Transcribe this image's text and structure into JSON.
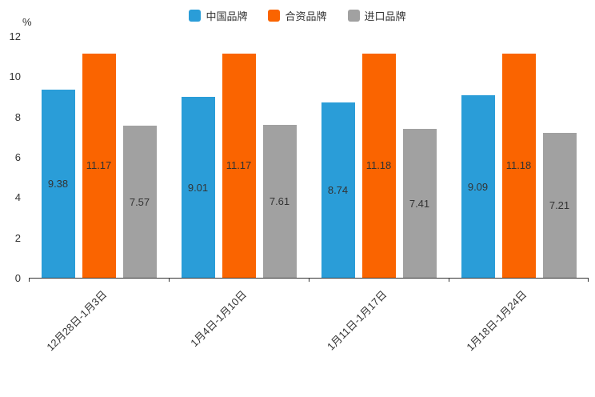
{
  "chart_data": {
    "type": "bar",
    "title": "",
    "ylabel": "%",
    "ylim": [
      0,
      12
    ],
    "yticks": [
      0,
      2,
      4,
      6,
      8,
      10,
      12
    ],
    "grid": false,
    "legend_position": "top",
    "value_labels": "inside-center",
    "categories": [
      "12月28日-1月3日",
      "1月4日-1月10日",
      "1月11日-1月17日",
      "1月18日-1月24日"
    ],
    "series": [
      {
        "name": "中国品牌",
        "color": "#2A9DD8",
        "values": [
          9.38,
          9.01,
          8.74,
          9.09
        ]
      },
      {
        "name": "合资品牌",
        "color": "#FA6400",
        "values": [
          11.17,
          11.17,
          11.18,
          11.18
        ]
      },
      {
        "name": "进口品牌",
        "color": "#A1A1A1",
        "values": [
          7.57,
          7.61,
          7.41,
          7.21
        ]
      }
    ]
  }
}
